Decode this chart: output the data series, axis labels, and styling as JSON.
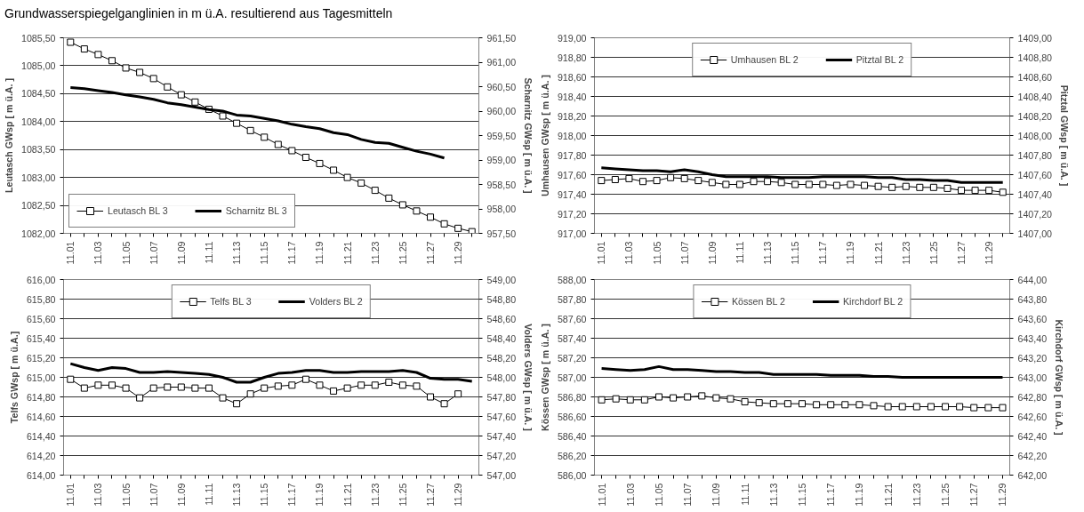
{
  "chart_data": [
    {
      "type": "line",
      "title": "Grundwasserspiegelganglinien in m ü.A. resultierend aus Tagesmitteln",
      "ylabel": "Leutasch GWsp [ m ü.A. ]",
      "y2label": "Scharnitz GWsp [ m ü.A. ]",
      "categories": [
        "11.01",
        null,
        "11.03",
        null,
        "11.05",
        null,
        "11.07",
        null,
        "11.09",
        null,
        "11.11",
        null,
        "11.13",
        null,
        "11.15",
        null,
        "11.17",
        null,
        "11.19",
        null,
        "11.21",
        null,
        "11.23",
        null,
        "11.25",
        null,
        "11.27",
        null,
        "11.29",
        null
      ],
      "series": [
        {
          "name": "Leutasch BL 3",
          "color": "#000000",
          "marker": "square",
          "values": [
            1085.42,
            1085.3,
            1085.2,
            1085.09,
            1084.96,
            1084.88,
            1084.77,
            1084.62,
            1084.48,
            1084.35,
            1084.22,
            1084.1,
            1083.97,
            1083.84,
            1083.72,
            1083.59,
            1083.48,
            1083.36,
            1083.25,
            1083.13,
            1083.0,
            1082.9,
            1082.77,
            1082.63,
            1082.51,
            1082.4,
            1082.29,
            1082.17,
            1082.09,
            1082.03
          ]
        },
        {
          "name": "Scharnitz BL 3",
          "color": "#000000",
          "marker": "none",
          "axis": "y2",
          "values": [
            960.48,
            960.46,
            960.42,
            960.38,
            960.33,
            960.29,
            960.24,
            960.17,
            960.13,
            960.08,
            960.03,
            960.0,
            959.92,
            959.9,
            959.85,
            959.8,
            959.73,
            959.68,
            959.64,
            959.56,
            959.52,
            959.42,
            959.36,
            959.34,
            959.26,
            959.18,
            959.12,
            959.04,
            null,
            null
          ]
        }
      ],
      "ylim": [
        1082.0,
        1085.5
      ],
      "yticks": [
        {
          "value": 1082.0,
          "label": "1082,00"
        },
        {
          "value": 1082.5,
          "label": "1082,50"
        },
        {
          "value": 1083.0,
          "label": "1083,00"
        },
        {
          "value": 1083.5,
          "label": "1083,50"
        },
        {
          "value": 1084.0,
          "label": "1084,00"
        },
        {
          "value": 1084.5,
          "label": "1084,50"
        },
        {
          "value": 1085.0,
          "label": "1085,00"
        },
        {
          "value": 1085.5,
          "label": "1085,50"
        }
      ],
      "y2lim": [
        957.5,
        961.5
      ],
      "y2ticks": [
        {
          "value": 957.5,
          "label": "957,50"
        },
        {
          "value": 958.0,
          "label": "958,00"
        },
        {
          "value": 958.5,
          "label": "958,50"
        },
        {
          "value": 959.0,
          "label": "959,00"
        },
        {
          "value": 959.5,
          "label": "959,50"
        },
        {
          "value": 960.0,
          "label": "960,00"
        },
        {
          "value": 960.5,
          "label": "960,50"
        },
        {
          "value": 961.0,
          "label": "961,00"
        },
        {
          "value": 961.5,
          "label": "961,50"
        }
      ],
      "grid": "y",
      "legend": "bottom left"
    },
    {
      "type": "line",
      "ylabel": "Umhausen GWsp [ m ü.A. ]",
      "y2label": "Pitztal GWsp [ m ü.A. ]",
      "categories": [
        "11.01",
        null,
        "11.03",
        null,
        "11.05",
        null,
        "11.07",
        null,
        "11.09",
        null,
        "11.11",
        null,
        "11.13",
        null,
        "11.15",
        null,
        "11.17",
        null,
        "11.19",
        null,
        "11.21",
        null,
        "11.23",
        null,
        "11.25",
        null,
        "11.27",
        null,
        "11.29",
        null
      ],
      "series": [
        {
          "name": "Umhausen BL 2",
          "color": "#000000",
          "marker": "square",
          "values": [
            917.54,
            917.55,
            917.56,
            917.53,
            917.54,
            917.57,
            917.56,
            917.54,
            917.52,
            917.5,
            917.5,
            917.53,
            917.53,
            917.52,
            917.5,
            917.5,
            917.5,
            917.49,
            917.5,
            917.49,
            917.48,
            917.47,
            917.48,
            917.47,
            917.47,
            917.46,
            917.44,
            917.44,
            917.44,
            917.42
          ]
        },
        {
          "name": "Pitztal BL 2",
          "color": "#000000",
          "marker": "none",
          "axis": "y2",
          "values": [
            1407.67,
            1407.66,
            1407.65,
            1407.64,
            1407.64,
            1407.63,
            1407.65,
            1407.63,
            1407.6,
            1407.58,
            1407.58,
            1407.58,
            1407.58,
            1407.57,
            1407.57,
            1407.57,
            1407.58,
            1407.58,
            1407.58,
            1407.58,
            1407.57,
            1407.57,
            1407.55,
            1407.55,
            1407.54,
            1407.54,
            1407.52,
            1407.52,
            1407.52,
            1407.52
          ]
        }
      ],
      "ylim": [
        917.0,
        919.0
      ],
      "yticks": [
        {
          "value": 917.0,
          "label": "917,00"
        },
        {
          "value": 917.2,
          "label": "917,20"
        },
        {
          "value": 917.4,
          "label": "917,40"
        },
        {
          "value": 917.6,
          "label": "917,60"
        },
        {
          "value": 917.8,
          "label": "917,80"
        },
        {
          "value": 918.0,
          "label": "918,00"
        },
        {
          "value": 918.2,
          "label": "918,20"
        },
        {
          "value": 918.4,
          "label": "918,40"
        },
        {
          "value": 918.6,
          "label": "918,60"
        },
        {
          "value": 918.8,
          "label": "918,80"
        },
        {
          "value": 919.0,
          "label": "919,00"
        }
      ],
      "y2lim": [
        1407.0,
        1409.0
      ],
      "y2ticks": [
        {
          "value": 1407.0,
          "label": "1407,00"
        },
        {
          "value": 1407.2,
          "label": "1407,20"
        },
        {
          "value": 1407.4,
          "label": "1407,40"
        },
        {
          "value": 1407.6,
          "label": "1407,60"
        },
        {
          "value": 1407.8,
          "label": "1407,80"
        },
        {
          "value": 1408.0,
          "label": "1408,00"
        },
        {
          "value": 1408.2,
          "label": "1408,20"
        },
        {
          "value": 1408.4,
          "label": "1408,40"
        },
        {
          "value": 1408.6,
          "label": "1408,60"
        },
        {
          "value": 1408.8,
          "label": "1408,80"
        },
        {
          "value": 1409.0,
          "label": "1409,00"
        }
      ],
      "grid": "y",
      "legend": "top"
    },
    {
      "type": "line",
      "ylabel": "Telfs GWsp [ m ü.A.]",
      "y2label": "Volders GWsp [ m ü.A. ]",
      "categories": [
        "11.01",
        null,
        "11.03",
        null,
        "11.05",
        null,
        "11.07",
        null,
        "11.09",
        null,
        "11.11",
        null,
        "11.13",
        null,
        "11.15",
        null,
        "11.17",
        null,
        "11.19",
        null,
        "11.21",
        null,
        "11.23",
        null,
        "11.25",
        null,
        "11.27",
        null,
        "11.29",
        null
      ],
      "series": [
        {
          "name": "Telfs BL 3",
          "color": "#000000",
          "marker": "square",
          "values": [
            614.98,
            614.89,
            614.92,
            614.92,
            614.89,
            614.79,
            614.89,
            614.9,
            614.9,
            614.89,
            614.89,
            614.79,
            614.73,
            614.83,
            614.89,
            614.91,
            614.92,
            614.98,
            614.92,
            614.86,
            614.89,
            614.92,
            614.92,
            614.95,
            614.92,
            614.91,
            614.8,
            614.73,
            614.83,
            null
          ]
        },
        {
          "name": "Volders BL 2",
          "color": "#000000",
          "marker": "none",
          "axis": "y2",
          "values": [
            548.14,
            548.1,
            548.07,
            548.1,
            548.09,
            548.05,
            548.05,
            548.06,
            548.05,
            548.04,
            548.03,
            548.0,
            547.95,
            547.95,
            548.0,
            548.04,
            548.05,
            548.07,
            548.07,
            548.05,
            548.05,
            548.06,
            548.06,
            548.06,
            548.07,
            548.05,
            547.99,
            547.98,
            547.98,
            547.96
          ]
        }
      ],
      "ylim": [
        614.0,
        616.0
      ],
      "yticks": [
        {
          "value": 614.0,
          "label": "614,00"
        },
        {
          "value": 614.2,
          "label": "614,20"
        },
        {
          "value": 614.4,
          "label": "614,40"
        },
        {
          "value": 614.6,
          "label": "614,60"
        },
        {
          "value": 614.8,
          "label": "614,80"
        },
        {
          "value": 615.0,
          "label": "615,00"
        },
        {
          "value": 615.2,
          "label": "615,20"
        },
        {
          "value": 615.4,
          "label": "615,40"
        },
        {
          "value": 615.6,
          "label": "615,60"
        },
        {
          "value": 615.8,
          "label": "615,80"
        },
        {
          "value": 616.0,
          "label": "616,00"
        }
      ],
      "y2lim": [
        547.0,
        549.0
      ],
      "y2ticks": [
        {
          "value": 547.0,
          "label": "547,00"
        },
        {
          "value": 547.2,
          "label": "547,20"
        },
        {
          "value": 547.4,
          "label": "547,40"
        },
        {
          "value": 547.6,
          "label": "547,60"
        },
        {
          "value": 547.8,
          "label": "547,80"
        },
        {
          "value": 548.0,
          "label": "548,00"
        },
        {
          "value": 548.2,
          "label": "548,20"
        },
        {
          "value": 548.4,
          "label": "548,40"
        },
        {
          "value": 548.6,
          "label": "548,60"
        },
        {
          "value": 548.8,
          "label": "548,80"
        },
        {
          "value": 549.0,
          "label": "549,00"
        }
      ],
      "grid": "y",
      "legend": "top"
    },
    {
      "type": "line",
      "ylabel": "Kössen GWsp [ m ü.A. ]",
      "y2label": "Kirchdorf GWsp [ m ü.A. ]",
      "categories": [
        "11.01",
        null,
        "11.03",
        null,
        "11.05",
        null,
        "11.07",
        null,
        "11.09",
        null,
        "11.11",
        null,
        "11.13",
        null,
        "11.15",
        null,
        "11.17",
        null,
        "11.19",
        null,
        "11.21",
        null,
        "11.23",
        null,
        "11.25",
        null,
        "11.27",
        null,
        "11.29"
      ],
      "series": [
        {
          "name": "Kössen BL 2",
          "color": "#000000",
          "marker": "square",
          "values": [
            586.77,
            586.78,
            586.77,
            586.77,
            586.8,
            586.79,
            586.8,
            586.81,
            586.79,
            586.78,
            586.75,
            586.74,
            586.73,
            586.73,
            586.73,
            586.72,
            586.72,
            586.72,
            586.72,
            586.71,
            586.7,
            586.7,
            586.7,
            586.7,
            586.7,
            586.7,
            586.69,
            586.69,
            586.69
          ]
        },
        {
          "name": "Kirchdorf BL 2",
          "color": "#000000",
          "marker": "none",
          "axis": "y2",
          "values": [
            643.09,
            643.08,
            643.07,
            643.08,
            643.11,
            643.08,
            643.08,
            643.07,
            643.06,
            643.06,
            643.05,
            643.05,
            643.03,
            643.03,
            643.03,
            643.03,
            643.02,
            643.02,
            643.02,
            643.01,
            643.01,
            643.0,
            643.0,
            643.0,
            643.0,
            643.0,
            643.0,
            643.0,
            643.0
          ]
        }
      ],
      "ylim": [
        586.0,
        588.0
      ],
      "yticks": [
        {
          "value": 586.0,
          "label": "586,00"
        },
        {
          "value": 586.2,
          "label": "586,20"
        },
        {
          "value": 586.4,
          "label": "586,40"
        },
        {
          "value": 586.6,
          "label": "586,60"
        },
        {
          "value": 586.8,
          "label": "586,80"
        },
        {
          "value": 587.0,
          "label": "587,00"
        },
        {
          "value": 587.2,
          "label": "587,20"
        },
        {
          "value": 587.4,
          "label": "587,40"
        },
        {
          "value": 587.6,
          "label": "587,60"
        },
        {
          "value": 587.8,
          "label": "587,80"
        },
        {
          "value": 588.0,
          "label": "588,00"
        }
      ],
      "y2lim": [
        642.0,
        644.0
      ],
      "y2ticks": [
        {
          "value": 642.0,
          "label": "642,00"
        },
        {
          "value": 642.2,
          "label": "642,20"
        },
        {
          "value": 642.4,
          "label": "642,40"
        },
        {
          "value": 642.6,
          "label": "642,60"
        },
        {
          "value": 642.8,
          "label": "642,80"
        },
        {
          "value": 643.0,
          "label": "643,00"
        },
        {
          "value": 643.2,
          "label": "643,20"
        },
        {
          "value": 643.4,
          "label": "643,40"
        },
        {
          "value": 643.6,
          "label": "643,60"
        },
        {
          "value": 643.8,
          "label": "643,80"
        },
        {
          "value": 644.0,
          "label": "644,00"
        }
      ],
      "grid": "y",
      "legend": "top"
    }
  ]
}
